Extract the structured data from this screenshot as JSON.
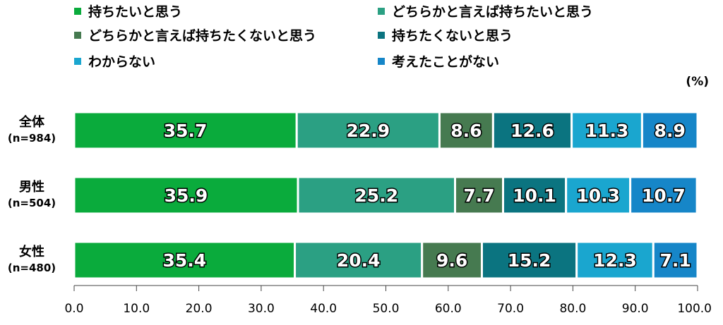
{
  "chart_data": {
    "type": "bar",
    "orientation": "horizontal",
    "stacked": true,
    "unit": "(%)",
    "categories": [
      {
        "label": "全体",
        "sub": "(n=984)"
      },
      {
        "label": "男性",
        "sub": "(n=504)"
      },
      {
        "label": "女性",
        "sub": "(n=480)"
      }
    ],
    "series": [
      {
        "name": "持ちたいと思う",
        "color": "#0aab3c",
        "values": [
          35.7,
          35.9,
          35.4
        ]
      },
      {
        "name": "どちらかと言えば持ちたいと思う",
        "color": "#2ba083",
        "values": [
          22.9,
          25.2,
          20.4
        ]
      },
      {
        "name": "どちらかと言えば持ちたくないと思う",
        "color": "#467a50",
        "values": [
          8.6,
          7.7,
          9.6
        ]
      },
      {
        "name": "持ちたくないと思う",
        "color": "#0b7480",
        "values": [
          12.6,
          10.1,
          15.2
        ]
      },
      {
        "name": "わからない",
        "color": "#1aa6cf",
        "values": [
          11.3,
          10.3,
          12.3
        ]
      },
      {
        "name": "考えたことがない",
        "color": "#1686c8",
        "values": [
          8.9,
          10.7,
          7.1
        ]
      }
    ],
    "xlim": [
      0,
      100
    ],
    "xticks": [
      "0.0",
      "10.0",
      "20.0",
      "30.0",
      "40.0",
      "50.0",
      "60.0",
      "70.0",
      "80.0",
      "90.0",
      "100.0"
    ],
    "legend_position": "top",
    "grid": false
  }
}
